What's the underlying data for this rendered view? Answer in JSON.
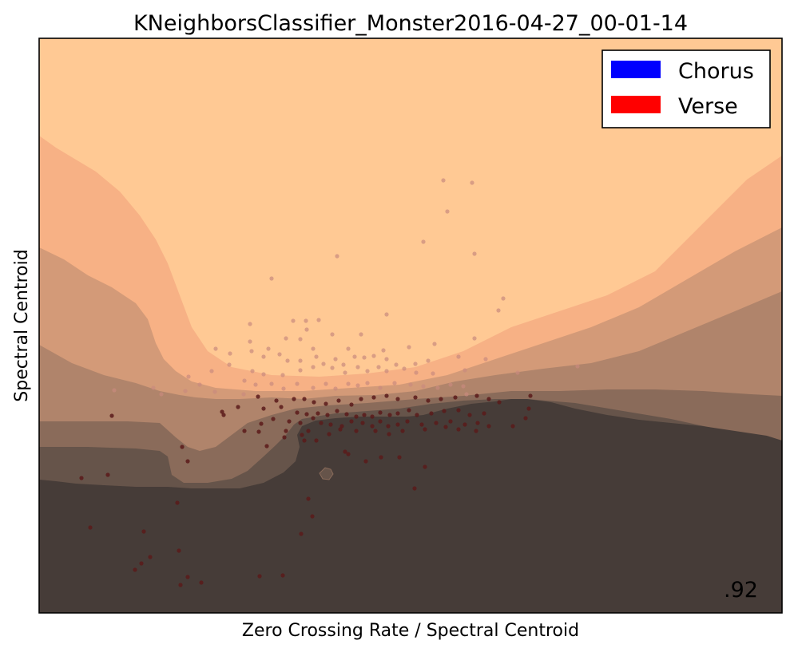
{
  "chart_data": {
    "type": "scatter",
    "title": "KNeighborsClassifier_Monster2016-04-27_00-01-14",
    "xlabel": "Zero Crossing Rate / Spectral Centroid",
    "ylabel": "Spectral Centroid",
    "score": ".92",
    "legend": {
      "placement": "top-right",
      "entries": [
        {
          "label": "Chorus",
          "color": "#0000ff"
        },
        {
          "label": "Verse",
          "color": "#ff0000"
        }
      ]
    },
    "ticks_visible": false,
    "grid": false,
    "colors": {
      "band_0": "#ffc994",
      "band_1": "#f7b185",
      "band_2": "#d39a78",
      "band_3": "#b0846b",
      "band_4": "#8a6b5a",
      "band_5": "#66544a",
      "band_6": "#463c38",
      "point_light": "#c98a7e",
      "point_dark": "#5a1a1a"
    },
    "series": [
      {
        "name": "Verse",
        "color": "#ff0000",
        "points": [
          [
            555,
            226
          ],
          [
            591,
            229
          ],
          [
            560,
            265
          ],
          [
            530,
            303
          ],
          [
            594,
            318
          ],
          [
            422,
            321
          ],
          [
            340,
            349
          ],
          [
            630,
            374
          ],
          [
            624,
            389
          ],
          [
            484,
            394
          ],
          [
            367,
            402
          ],
          [
            383,
            402
          ],
          [
            399,
            401
          ],
          [
            313,
            406
          ],
          [
            384,
            413
          ],
          [
            416,
            419
          ],
          [
            452,
            419
          ],
          [
            358,
            424
          ],
          [
            376,
            425
          ],
          [
            313,
            428
          ],
          [
            544,
            431
          ],
          [
            594,
            424
          ],
          [
            270,
            437
          ],
          [
            336,
            437
          ],
          [
            392,
            437
          ],
          [
            436,
            437
          ],
          [
            480,
            439
          ],
          [
            512,
            435
          ],
          [
            574,
            447
          ],
          [
            608,
            450
          ],
          [
            288,
            443
          ],
          [
            315,
            440
          ],
          [
            330,
            447
          ],
          [
            350,
            444
          ],
          [
            360,
            452
          ],
          [
            376,
            452
          ],
          [
            396,
            447
          ],
          [
            405,
            456
          ],
          [
            420,
            450
          ],
          [
            430,
            457
          ],
          [
            444,
            447
          ],
          [
            456,
            448
          ],
          [
            468,
            446
          ],
          [
            484,
            450
          ],
          [
            496,
            457
          ],
          [
            520,
            456
          ],
          [
            536,
            452
          ],
          [
            265,
            465
          ],
          [
            287,
            457
          ],
          [
            316,
            465
          ],
          [
            330,
            469
          ],
          [
            354,
            470
          ],
          [
            376,
            464
          ],
          [
            392,
            460
          ],
          [
            416,
            461
          ],
          [
            432,
            467
          ],
          [
            448,
            460
          ],
          [
            460,
            465
          ],
          [
            474,
            460
          ],
          [
            484,
            465
          ],
          [
            506,
            462
          ],
          [
            521,
            467
          ],
          [
            542,
            468
          ],
          [
            582,
            464
          ],
          [
            250,
            482
          ],
          [
            306,
            477
          ],
          [
            320,
            482
          ],
          [
            340,
            481
          ],
          [
            355,
            487
          ],
          [
            372,
            481
          ],
          [
            392,
            486
          ],
          [
            408,
            481
          ],
          [
            420,
            487
          ],
          [
            436,
            481
          ],
          [
            448,
            483
          ],
          [
            460,
            480
          ],
          [
            476,
            486
          ],
          [
            494,
            480
          ],
          [
            514,
            482
          ],
          [
            530,
            484
          ],
          [
            548,
            486
          ],
          [
            564,
            482
          ],
          [
            580,
            484
          ],
          [
            236,
            472
          ],
          [
            648,
            467
          ],
          [
            723,
            459
          ],
          [
            143,
            489
          ],
          [
            192,
            486
          ],
          [
            202,
            494
          ],
          [
            232,
            490
          ],
          [
            269,
            491
          ],
          [
            305,
            494
          ],
          [
            323,
            497
          ],
          [
            346,
            502
          ],
          [
            368,
            500
          ],
          [
            381,
            500
          ],
          [
            393,
            504
          ],
          [
            408,
            506
          ],
          [
            424,
            502
          ],
          [
            440,
            507
          ],
          [
            452,
            500
          ],
          [
            468,
            498
          ],
          [
            484,
            496
          ],
          [
            498,
            500
          ],
          [
            520,
            498
          ],
          [
            536,
            502
          ],
          [
            552,
            500
          ],
          [
            570,
            498
          ],
          [
            584,
            494
          ],
          [
            597,
            496
          ],
          [
            612,
            500
          ],
          [
            625,
            504
          ],
          [
            664,
            496
          ],
          [
            140,
            521
          ],
          [
            278,
            516
          ],
          [
            298,
            510
          ],
          [
            330,
            512
          ],
          [
            352,
            510
          ],
          [
            372,
            517
          ],
          [
            384,
            519
          ],
          [
            398,
            518
          ],
          [
            410,
            520
          ],
          [
            422,
            515
          ],
          [
            434,
            519
          ],
          [
            446,
            522
          ],
          [
            456,
            520
          ],
          [
            466,
            522
          ],
          [
            476,
            517
          ],
          [
            488,
            520
          ],
          [
            498,
            518
          ],
          [
            512,
            514
          ],
          [
            522,
            520
          ],
          [
            540,
            518
          ],
          [
            556,
            515
          ],
          [
            574,
            514
          ],
          [
            588,
            520
          ],
          [
            606,
            518
          ],
          [
            662,
            512
          ],
          [
            280,
            520
          ],
          [
            327,
            531
          ],
          [
            342,
            525
          ],
          [
            362,
            528
          ],
          [
            376,
            530
          ],
          [
            392,
            524
          ],
          [
            402,
            530
          ],
          [
            414,
            532
          ],
          [
            428,
            534
          ],
          [
            440,
            528
          ],
          [
            454,
            530
          ],
          [
            466,
            534
          ],
          [
            476,
            528
          ],
          [
            486,
            534
          ],
          [
            498,
            532
          ],
          [
            510,
            528
          ],
          [
            528,
            532
          ],
          [
            546,
            530
          ],
          [
            564,
            528
          ],
          [
            582,
            532
          ],
          [
            598,
            530
          ],
          [
            612,
            534
          ],
          [
            642,
            534
          ],
          [
            658,
            524
          ],
          [
            306,
            540
          ],
          [
            324,
            541
          ],
          [
            358,
            540
          ],
          [
            378,
            545
          ],
          [
            386,
            540
          ],
          [
            412,
            544
          ],
          [
            426,
            538
          ],
          [
            446,
            540
          ],
          [
            470,
            540
          ],
          [
            487,
            544
          ],
          [
            504,
            540
          ],
          [
            532,
            538
          ],
          [
            558,
            535
          ],
          [
            574,
            538
          ],
          [
            596,
            540
          ],
          [
            381,
            552
          ],
          [
            396,
            552
          ],
          [
            356,
            548
          ],
          [
            334,
            559
          ],
          [
            432,
            566
          ],
          [
            436,
            569
          ],
          [
            458,
            578
          ],
          [
            477,
            573
          ],
          [
            500,
            573
          ],
          [
            532,
            585
          ],
          [
            228,
            560
          ],
          [
            235,
            578
          ],
          [
            102,
            599
          ],
          [
            135,
            595
          ],
          [
            519,
            612
          ],
          [
            386,
            625
          ],
          [
            222,
            630
          ],
          [
            391,
            647
          ],
          [
            113,
            661
          ],
          [
            180,
            666
          ],
          [
            377,
            669
          ],
          [
            188,
            698
          ],
          [
            224,
            690
          ],
          [
            177,
            706
          ],
          [
            169,
            714
          ],
          [
            235,
            723
          ],
          [
            252,
            730
          ],
          [
            226,
            733
          ],
          [
            325,
            722
          ],
          [
            354,
            721
          ]
        ]
      }
    ]
  }
}
